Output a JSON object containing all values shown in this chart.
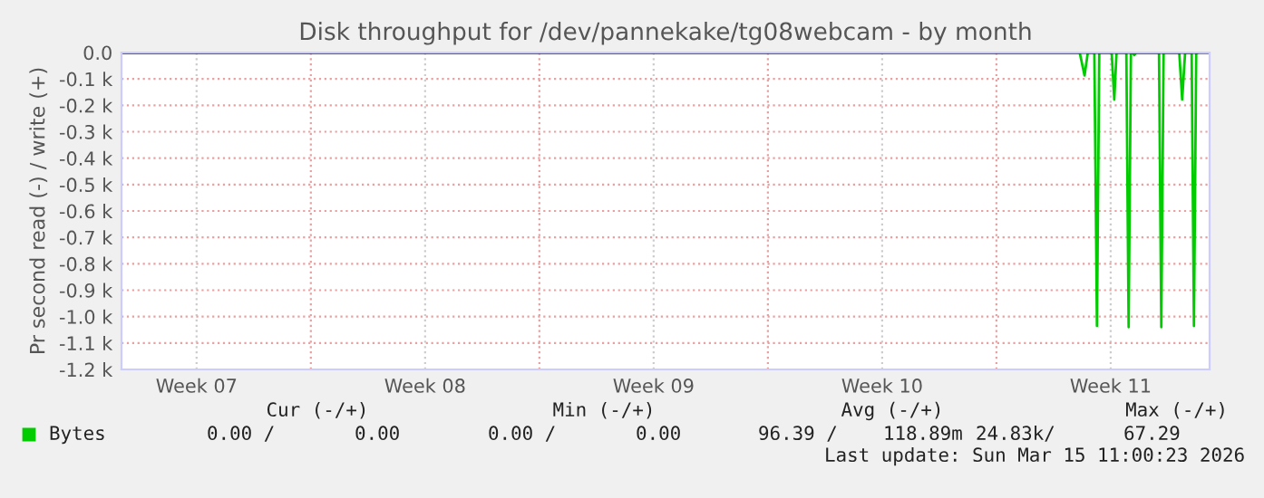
{
  "chart_data": {
    "type": "line",
    "title": "Disk throughput for /dev/pannekake/tg08webcam - by month",
    "ylabel": "Pr second read (-) / write (+)",
    "x": [
      "2026-02-10T04:48",
      "2026-03-11T13:12",
      "2026-03-11T16:48",
      "2026-03-11T19:12",
      "2026-03-12T00:00",
      "2026-03-12T01:55",
      "2026-03-12T03:36",
      "2026-03-12T12:43",
      "2026-03-12T14:38",
      "2026-03-12T16:19",
      "2026-03-12T23:31",
      "2026-03-13T01:12",
      "2026-03-13T02:53",
      "2026-03-13T04:19",
      "2026-03-13T05:17",
      "2026-03-13T06:43",
      "2026-03-13T23:31",
      "2026-03-14T01:12",
      "2026-03-14T02:53",
      "2026-03-14T14:24",
      "2026-03-14T16:34",
      "2026-03-14T18:43",
      "2026-03-14T23:31",
      "2026-03-15T01:12",
      "2026-03-15T02:53",
      "2026-03-15T03:36"
    ],
    "series": [
      {
        "name": "Bytes",
        "color": "#00cc00",
        "values": [
          0,
          0,
          -87,
          0,
          0,
          -1035,
          0,
          0,
          -178,
          0,
          0,
          -1040,
          0,
          0,
          -10,
          0,
          0,
          -1040,
          0,
          0,
          -178,
          0,
          0,
          -1035,
          0,
          0
        ]
      }
    ],
    "xlim": [
      "2026-02-10T04:48",
      "2026-03-15T12:43"
    ],
    "xticks": [
      {
        "value": "2026-02-12T12:00",
        "label": "Week 07"
      },
      {
        "value": "2026-02-16T00:00",
        "label": null
      },
      {
        "value": "2026-02-19T12:00",
        "label": "Week 08"
      },
      {
        "value": "2026-02-23T00:00",
        "label": null
      },
      {
        "value": "2026-02-26T12:00",
        "label": "Week 09"
      },
      {
        "value": "2026-03-02T00:00",
        "label": null
      },
      {
        "value": "2026-03-05T12:00",
        "label": "Week 10"
      },
      {
        "value": "2026-03-09T00:00",
        "label": null
      },
      {
        "value": "2026-03-12T12:00",
        "label": "Week 11"
      }
    ],
    "ylim": [
      -1200,
      0
    ],
    "yticks": [
      {
        "value": 0,
        "label": "0.0"
      },
      {
        "value": -100,
        "label": "-0.1 k"
      },
      {
        "value": -200,
        "label": "-0.2 k"
      },
      {
        "value": -300,
        "label": "-0.3 k"
      },
      {
        "value": -400,
        "label": "-0.4 k"
      },
      {
        "value": -500,
        "label": "-0.5 k"
      },
      {
        "value": -600,
        "label": "-0.6 k"
      },
      {
        "value": -700,
        "label": "-0.7 k"
      },
      {
        "value": -800,
        "label": "-0.8 k"
      },
      {
        "value": -900,
        "label": "-0.9 k"
      },
      {
        "value": -1000,
        "label": "-1.0 k"
      },
      {
        "value": -1100,
        "label": "-1.1 k"
      },
      {
        "value": -1200,
        "label": "-1.2 k"
      }
    ],
    "grid": true,
    "legend": "bottom left",
    "marker": "none",
    "line_style": "solid",
    "annotations": [
      "Cur (-/+)",
      "Min (-/+)",
      "Avg (-/+)",
      "Max (-/+)",
      "0.00 /       0.00",
      "0.00 /       0.00",
      "96.39 /    118.89m",
      "24.83k/      67.29",
      "Last update: Sun Mar 15 11:00:23 2026"
    ]
  }
}
